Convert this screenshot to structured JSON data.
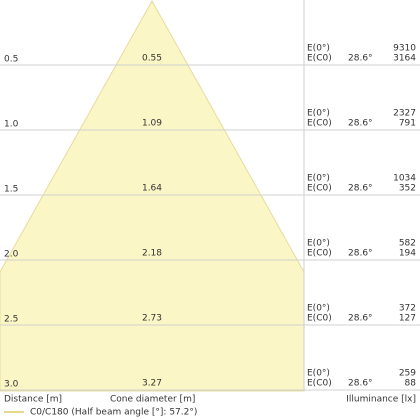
{
  "labels": {
    "e_zero": "E(0°)",
    "e_c0": "E(C0)"
  },
  "rows": [
    {
      "distance": "0.5",
      "diameter": "0.55",
      "angle": "28.6°",
      "e_zero": "9310",
      "e_c0": "3164"
    },
    {
      "distance": "1.0",
      "diameter": "1.09",
      "angle": "28.6°",
      "e_zero": "2327",
      "e_c0": "791"
    },
    {
      "distance": "1.5",
      "diameter": "1.64",
      "angle": "28.6°",
      "e_zero": "1034",
      "e_c0": "352"
    },
    {
      "distance": "2.0",
      "diameter": "2.18",
      "angle": "28.6°",
      "e_zero": "582",
      "e_c0": "194"
    },
    {
      "distance": "2.5",
      "diameter": "2.73",
      "angle": "28.6°",
      "e_zero": "372",
      "e_c0": "127"
    },
    {
      "distance": "3.0",
      "diameter": "3.27",
      "angle": "28.6°",
      "e_zero": "259",
      "e_c0": "88"
    }
  ],
  "footer": {
    "distance": "Distance [m]",
    "diameter": "Cone diameter [m]",
    "illuminance": "Illuminance [lx]"
  },
  "legend": "C0/C180 (Half beam angle [°]: 57.2°)"
}
